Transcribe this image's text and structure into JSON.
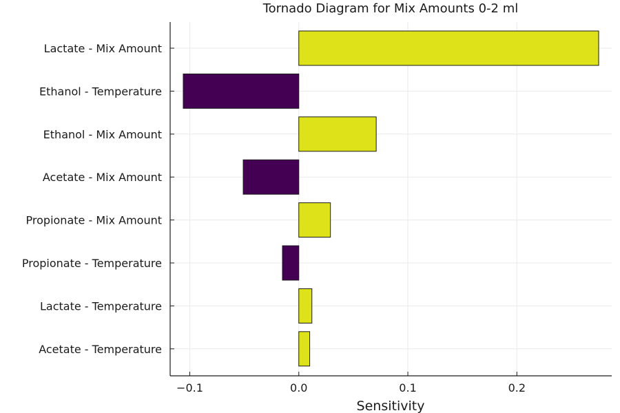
{
  "chart_data": {
    "type": "bar",
    "orientation": "horizontal",
    "title": "Tornado Diagram for Mix Amounts 0-2 ml",
    "xlabel": "Sensitivity",
    "ylabel": "",
    "categories": [
      "Lactate - Mix Amount",
      "Ethanol - Temperature",
      "Ethanol - Mix Amount",
      "Acetate - Mix Amount",
      "Propionate - Mix Amount",
      "Propionate - Temperature",
      "Lactate - Temperature",
      "Acetate - Temperature"
    ],
    "values": [
      0.275,
      -0.106,
      0.071,
      -0.051,
      0.029,
      -0.015,
      0.012,
      0.01
    ],
    "xlim": [
      -0.118,
      0.287
    ],
    "xticks": [
      -0.1,
      0.0,
      0.1,
      0.2
    ],
    "xtick_labels": [
      "−0.1",
      "0.0",
      "0.1",
      "0.2"
    ],
    "colors": {
      "positive": "#dde318",
      "negative": "#440154"
    },
    "grid": true,
    "legend": "none"
  }
}
